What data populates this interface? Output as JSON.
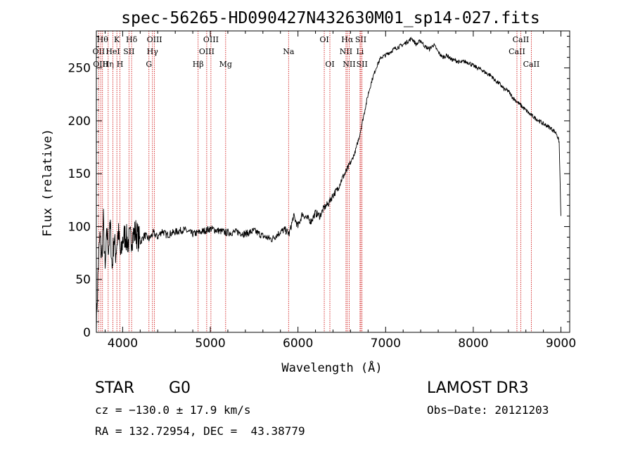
{
  "chart_data": {
    "type": "line",
    "title": "spec-56265-HD090427N432630M01_sp14-027.fits",
    "xlabel": "Wavelength (Å)",
    "ylabel": "Flux (relative)",
    "xlim": [
      3700,
      9100
    ],
    "ylim": [
      0,
      285
    ],
    "xticks": [
      4000,
      5000,
      6000,
      7000,
      8000,
      9000
    ],
    "yticks": [
      0,
      50,
      100,
      150,
      200,
      250
    ],
    "series": [
      {
        "name": "flux",
        "x": [
          3700,
          3720,
          3740,
          3760,
          3780,
          3800,
          3820,
          3840,
          3860,
          3880,
          3900,
          3920,
          3950,
          3980,
          4000,
          4030,
          4060,
          4100,
          4150,
          4200,
          4250,
          4300,
          4350,
          4400,
          4450,
          4500,
          4600,
          4700,
          4800,
          4900,
          5000,
          5100,
          5200,
          5300,
          5400,
          5500,
          5600,
          5700,
          5800,
          5850,
          5900,
          5950,
          6000,
          6050,
          6100,
          6150,
          6200,
          6250,
          6300,
          6350,
          6400,
          6450,
          6500,
          6550,
          6600,
          6650,
          6700,
          6750,
          6800,
          6850,
          6900,
          6950,
          7000,
          7050,
          7100,
          7150,
          7200,
          7250,
          7300,
          7350,
          7400,
          7450,
          7500,
          7550,
          7600,
          7650,
          7700,
          7750,
          7800,
          7850,
          7900,
          7950,
          8000,
          8050,
          8100,
          8150,
          8200,
          8250,
          8300,
          8350,
          8400,
          8450,
          8500,
          8550,
          8600,
          8650,
          8700,
          8750,
          8800,
          8850,
          8900,
          8950,
          8980,
          9000
        ],
        "values": [
          5,
          60,
          90,
          70,
          105,
          55,
          95,
          80,
          100,
          60,
          90,
          75,
          95,
          70,
          88,
          92,
          85,
          90,
          95,
          85,
          92,
          88,
          94,
          90,
          96,
          92,
          95,
          97,
          93,
          95,
          98,
          96,
          94,
          95,
          93,
          96,
          91,
          88,
          95,
          97,
          93,
          110,
          100,
          112,
          108,
          105,
          113,
          110,
          118,
          122,
          130,
          135,
          145,
          152,
          160,
          170,
          185,
          205,
          225,
          240,
          252,
          260,
          262,
          265,
          268,
          270,
          272,
          275,
          278,
          272,
          276,
          270,
          268,
          272,
          265,
          260,
          262,
          258,
          257,
          255,
          256,
          255,
          252,
          250,
          248,
          245,
          243,
          238,
          235,
          230,
          228,
          222,
          218,
          214,
          210,
          206,
          203,
          200,
          197,
          195,
          192,
          188,
          180,
          110
        ]
      }
    ],
    "line_markers": [
      {
        "x": 3727,
        "label": "OII",
        "row": 1
      },
      {
        "x": 3750,
        "label": "OIII",
        "row": 2
      },
      {
        "x": 3770,
        "label": "Hθ",
        "row": 0
      },
      {
        "x": 3835,
        "label": "Hη",
        "row": 2
      },
      {
        "x": 3889,
        "label": "HeI",
        "row": 1
      },
      {
        "x": 3934,
        "label": "K",
        "row": 0
      },
      {
        "x": 3969,
        "label": "H",
        "row": 2
      },
      {
        "x": 4072,
        "label": "SII",
        "row": 1
      },
      {
        "x": 4102,
        "label": "Hδ",
        "row": 0
      },
      {
        "x": 4300,
        "label": "G",
        "row": 2
      },
      {
        "x": 4340,
        "label": "Hγ",
        "row": 1
      },
      {
        "x": 4363,
        "label": "OIII",
        "row": 0
      },
      {
        "x": 4861,
        "label": "Hβ",
        "row": 2
      },
      {
        "x": 4959,
        "label": "OIII",
        "row": 1
      },
      {
        "x": 5007,
        "label": "OIII",
        "row": 0
      },
      {
        "x": 5175,
        "label": "Mg",
        "row": 2
      },
      {
        "x": 5893,
        "label": "Na",
        "row": 1
      },
      {
        "x": 6300,
        "label": "OI",
        "row": 0
      },
      {
        "x": 6364,
        "label": "OI",
        "row": 2
      },
      {
        "x": 6548,
        "label": "NII",
        "row": 1
      },
      {
        "x": 6563,
        "label": "Hα",
        "row": 0
      },
      {
        "x": 6584,
        "label": "NII",
        "row": 2
      },
      {
        "x": 6708,
        "label": "Li",
        "row": 1
      },
      {
        "x": 6717,
        "label": "SII",
        "row": 0
      },
      {
        "x": 6731,
        "label": "SII",
        "row": 2
      },
      {
        "x": 8498,
        "label": "CaII",
        "row": 1
      },
      {
        "x": 8542,
        "label": "CaII",
        "row": 0
      },
      {
        "x": 8662,
        "label": "CaII",
        "row": 2
      }
    ]
  },
  "info": {
    "object_type": "STAR",
    "subclass": "G0",
    "survey": "LAMOST DR3",
    "cz": "cz = −130.0 ± 17.9 km/s",
    "obs_date": "Obs−Date: 20121203",
    "coords": "RA = 132.72954, DEC =  43.38779"
  },
  "colors": {
    "line_marker": "#cc0000",
    "spectrum": "#000000"
  }
}
